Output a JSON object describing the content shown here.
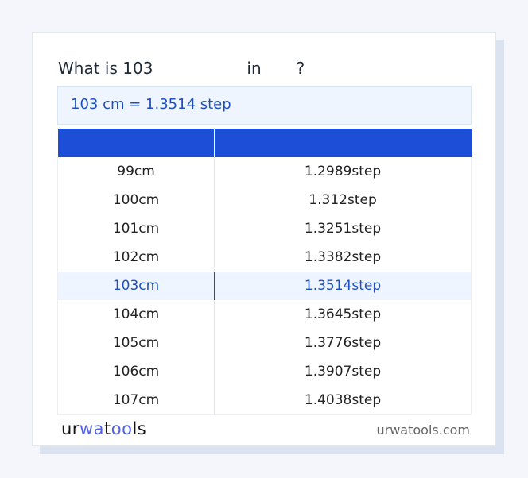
{
  "title": {
    "prefix": "What is 103",
    "middle": "in",
    "suffix": "?"
  },
  "result": "103 cm = 1.3514 step",
  "table": {
    "headers": [
      "",
      ""
    ],
    "rows": [
      [
        "99cm",
        "1.2989step"
      ],
      [
        "100cm",
        "1.312step"
      ],
      [
        "101cm",
        "1.3251step"
      ],
      [
        "102cm",
        "1.3382step"
      ],
      [
        "103cm",
        "1.3514step"
      ],
      [
        "104cm",
        "1.3645step"
      ],
      [
        "105cm",
        "1.3776step"
      ],
      [
        "106cm",
        "1.3907step"
      ],
      [
        "107cm",
        "1.4038step"
      ]
    ],
    "highlighted_row": 4
  },
  "footer": {
    "logo": "urwatools",
    "site": "urwatools.com"
  },
  "colors": {
    "accent": "#1d4ed8",
    "highlight_bg": "#eef5ff"
  }
}
